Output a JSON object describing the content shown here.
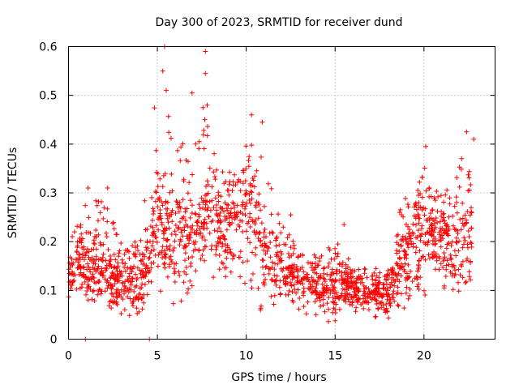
{
  "chart_data": {
    "type": "scatter",
    "title": "Day 300 of 2023, SRMTID for receiver dund",
    "xlabel": "GPS time / hours",
    "ylabel": "SRMTID / TECUs",
    "xlim": [
      0,
      24
    ],
    "ylim": [
      0,
      0.6
    ],
    "x_ticks": [
      0,
      5,
      10,
      15,
      20
    ],
    "y_ticks": [
      0,
      0.1,
      0.2,
      0.3,
      0.4,
      0.5,
      0.6
    ],
    "x_tick_labels": [
      "0",
      "5",
      "10",
      "15",
      "20"
    ],
    "y_tick_labels": [
      "0",
      "0.1",
      "0.2",
      "0.3",
      "0.4",
      "0.5",
      "0.6"
    ],
    "grid": true,
    "marker": "plus",
    "series_color": "#ff0000",
    "series": [
      {
        "name": "SRMTID",
        "envelope_note": "dense scatter; values approximated as hourly envelopes",
        "hourly_profile": [
          {
            "hour": 0,
            "low": 0.09,
            "mid": 0.14,
            "high": 0.23
          },
          {
            "hour": 1,
            "low": 0.07,
            "mid": 0.15,
            "high": 0.31
          },
          {
            "hour": 2,
            "low": 0.06,
            "mid": 0.13,
            "high": 0.31
          },
          {
            "hour": 3,
            "low": 0.05,
            "mid": 0.11,
            "high": 0.22
          },
          {
            "hour": 4,
            "low": 0.05,
            "mid": 0.12,
            "high": 0.22
          },
          {
            "hour": 5,
            "low": 0.09,
            "mid": 0.22,
            "high": 0.6
          },
          {
            "hour": 6,
            "low": 0.08,
            "mid": 0.2,
            "high": 0.45
          },
          {
            "hour": 7,
            "low": 0.1,
            "mid": 0.22,
            "high": 0.59
          },
          {
            "hour": 8,
            "low": 0.12,
            "mid": 0.24,
            "high": 0.48
          },
          {
            "hour": 9,
            "low": 0.12,
            "mid": 0.24,
            "high": 0.37
          },
          {
            "hour": 10,
            "low": 0.12,
            "mid": 0.26,
            "high": 0.46
          },
          {
            "hour": 11,
            "low": 0.06,
            "mid": 0.17,
            "high": 0.44
          },
          {
            "hour": 12,
            "low": 0.07,
            "mid": 0.14,
            "high": 0.25
          },
          {
            "hour": 13,
            "low": 0.06,
            "mid": 0.12,
            "high": 0.2
          },
          {
            "hour": 14,
            "low": 0.04,
            "mid": 0.1,
            "high": 0.19
          },
          {
            "hour": 15,
            "low": 0.04,
            "mid": 0.11,
            "high": 0.23
          },
          {
            "hour": 16,
            "low": 0.05,
            "mid": 0.1,
            "high": 0.17
          },
          {
            "hour": 17,
            "low": 0.05,
            "mid": 0.09,
            "high": 0.17
          },
          {
            "hour": 18,
            "low": 0.04,
            "mid": 0.09,
            "high": 0.14
          },
          {
            "hour": 19,
            "low": 0.07,
            "mid": 0.17,
            "high": 0.37
          },
          {
            "hour": 20,
            "low": 0.1,
            "mid": 0.21,
            "high": 0.39
          },
          {
            "hour": 21,
            "low": 0.11,
            "mid": 0.21,
            "high": 0.31
          },
          {
            "hour": 22,
            "low": 0.07,
            "mid": 0.19,
            "high": 0.42
          },
          {
            "hour": 22.7,
            "low": 0.11,
            "mid": 0.22,
            "high": 0.41
          }
        ],
        "notable_points": [
          {
            "x": 5.4,
            "y": 0.6
          },
          {
            "x": 5.3,
            "y": 0.55
          },
          {
            "x": 5.5,
            "y": 0.51
          },
          {
            "x": 7.7,
            "y": 0.59
          },
          {
            "x": 7.7,
            "y": 0.545
          },
          {
            "x": 7.8,
            "y": 0.48
          },
          {
            "x": 10.3,
            "y": 0.46
          },
          {
            "x": 10.9,
            "y": 0.445
          },
          {
            "x": 22.4,
            "y": 0.425
          },
          {
            "x": 22.8,
            "y": 0.41
          },
          {
            "x": 20.1,
            "y": 0.395
          },
          {
            "x": 1.1,
            "y": 0.31
          },
          {
            "x": 2.2,
            "y": 0.31
          },
          {
            "x": 12.5,
            "y": 0.255
          },
          {
            "x": 15.5,
            "y": 0.235
          },
          {
            "x": 10.8,
            "y": 0.06
          },
          {
            "x": 0.95,
            "y": 0.0
          },
          {
            "x": 4.55,
            "y": 0.0
          }
        ]
      }
    ]
  }
}
